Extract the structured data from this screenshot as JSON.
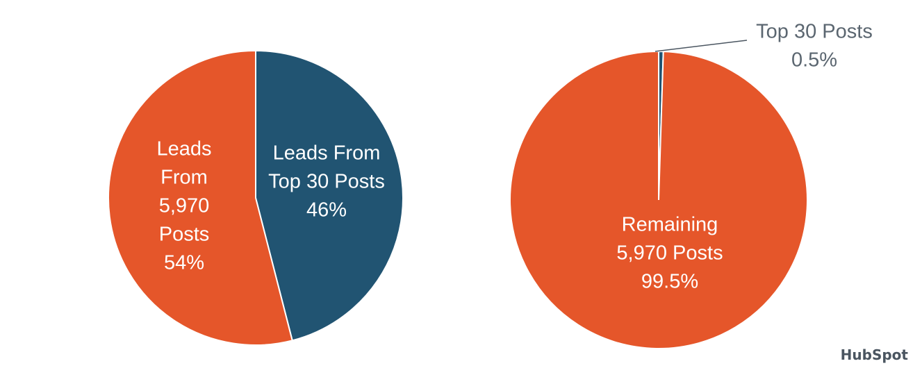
{
  "colors": {
    "orange": "#e5562a",
    "navy": "#215472",
    "callout_line": "#4a5560"
  },
  "chart_data": [
    {
      "type": "pie",
      "slices": [
        {
          "label_lines": [
            "Leads From",
            "Top 30 Posts",
            "46%"
          ],
          "value": 46,
          "color": "#215472"
        },
        {
          "label_lines": [
            "Leads",
            "From",
            "5,970",
            "Posts",
            "54%"
          ],
          "value": 54,
          "color": "#e5562a"
        }
      ]
    },
    {
      "type": "pie",
      "slices": [
        {
          "label_lines": [
            "Top 30 Posts",
            "0.5%"
          ],
          "value": 0.5,
          "color": "#215472"
        },
        {
          "label_lines": [
            "Remaining",
            "5,970 Posts",
            "99.5%"
          ],
          "value": 99.5,
          "color": "#e5562a"
        }
      ]
    }
  ],
  "logo": {
    "text": "HubSpot"
  }
}
